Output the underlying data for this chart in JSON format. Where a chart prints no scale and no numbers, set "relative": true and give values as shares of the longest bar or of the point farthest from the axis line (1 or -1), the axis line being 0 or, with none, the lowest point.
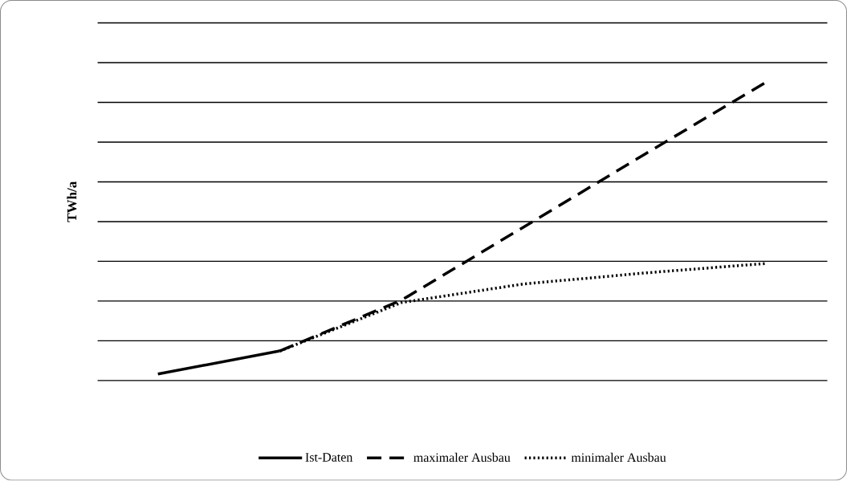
{
  "chart_data": {
    "type": "line",
    "relative": true,
    "ylabel": "TWh/a",
    "grid": "y",
    "legend": "bottom",
    "categories": [
      null,
      null,
      null,
      null,
      null,
      null
    ],
    "series": [
      {
        "name": "Ist-Daten",
        "color": "#000000",
        "line_style": "solid",
        "values": [
          0.022,
          0.099,
          null,
          null,
          null,
          null
        ]
      },
      {
        "name": "maximaler Ausbau",
        "color": "#000000",
        "line_style": "dashed",
        "values": [
          null,
          0.099,
          0.269,
          0.513,
          0.758,
          1.0
        ]
      },
      {
        "name": "minimaler Ausbau",
        "color": "#000000",
        "line_style": "dotted",
        "values": [
          null,
          0.099,
          0.261,
          0.323,
          0.36,
          0.392
        ]
      }
    ]
  }
}
